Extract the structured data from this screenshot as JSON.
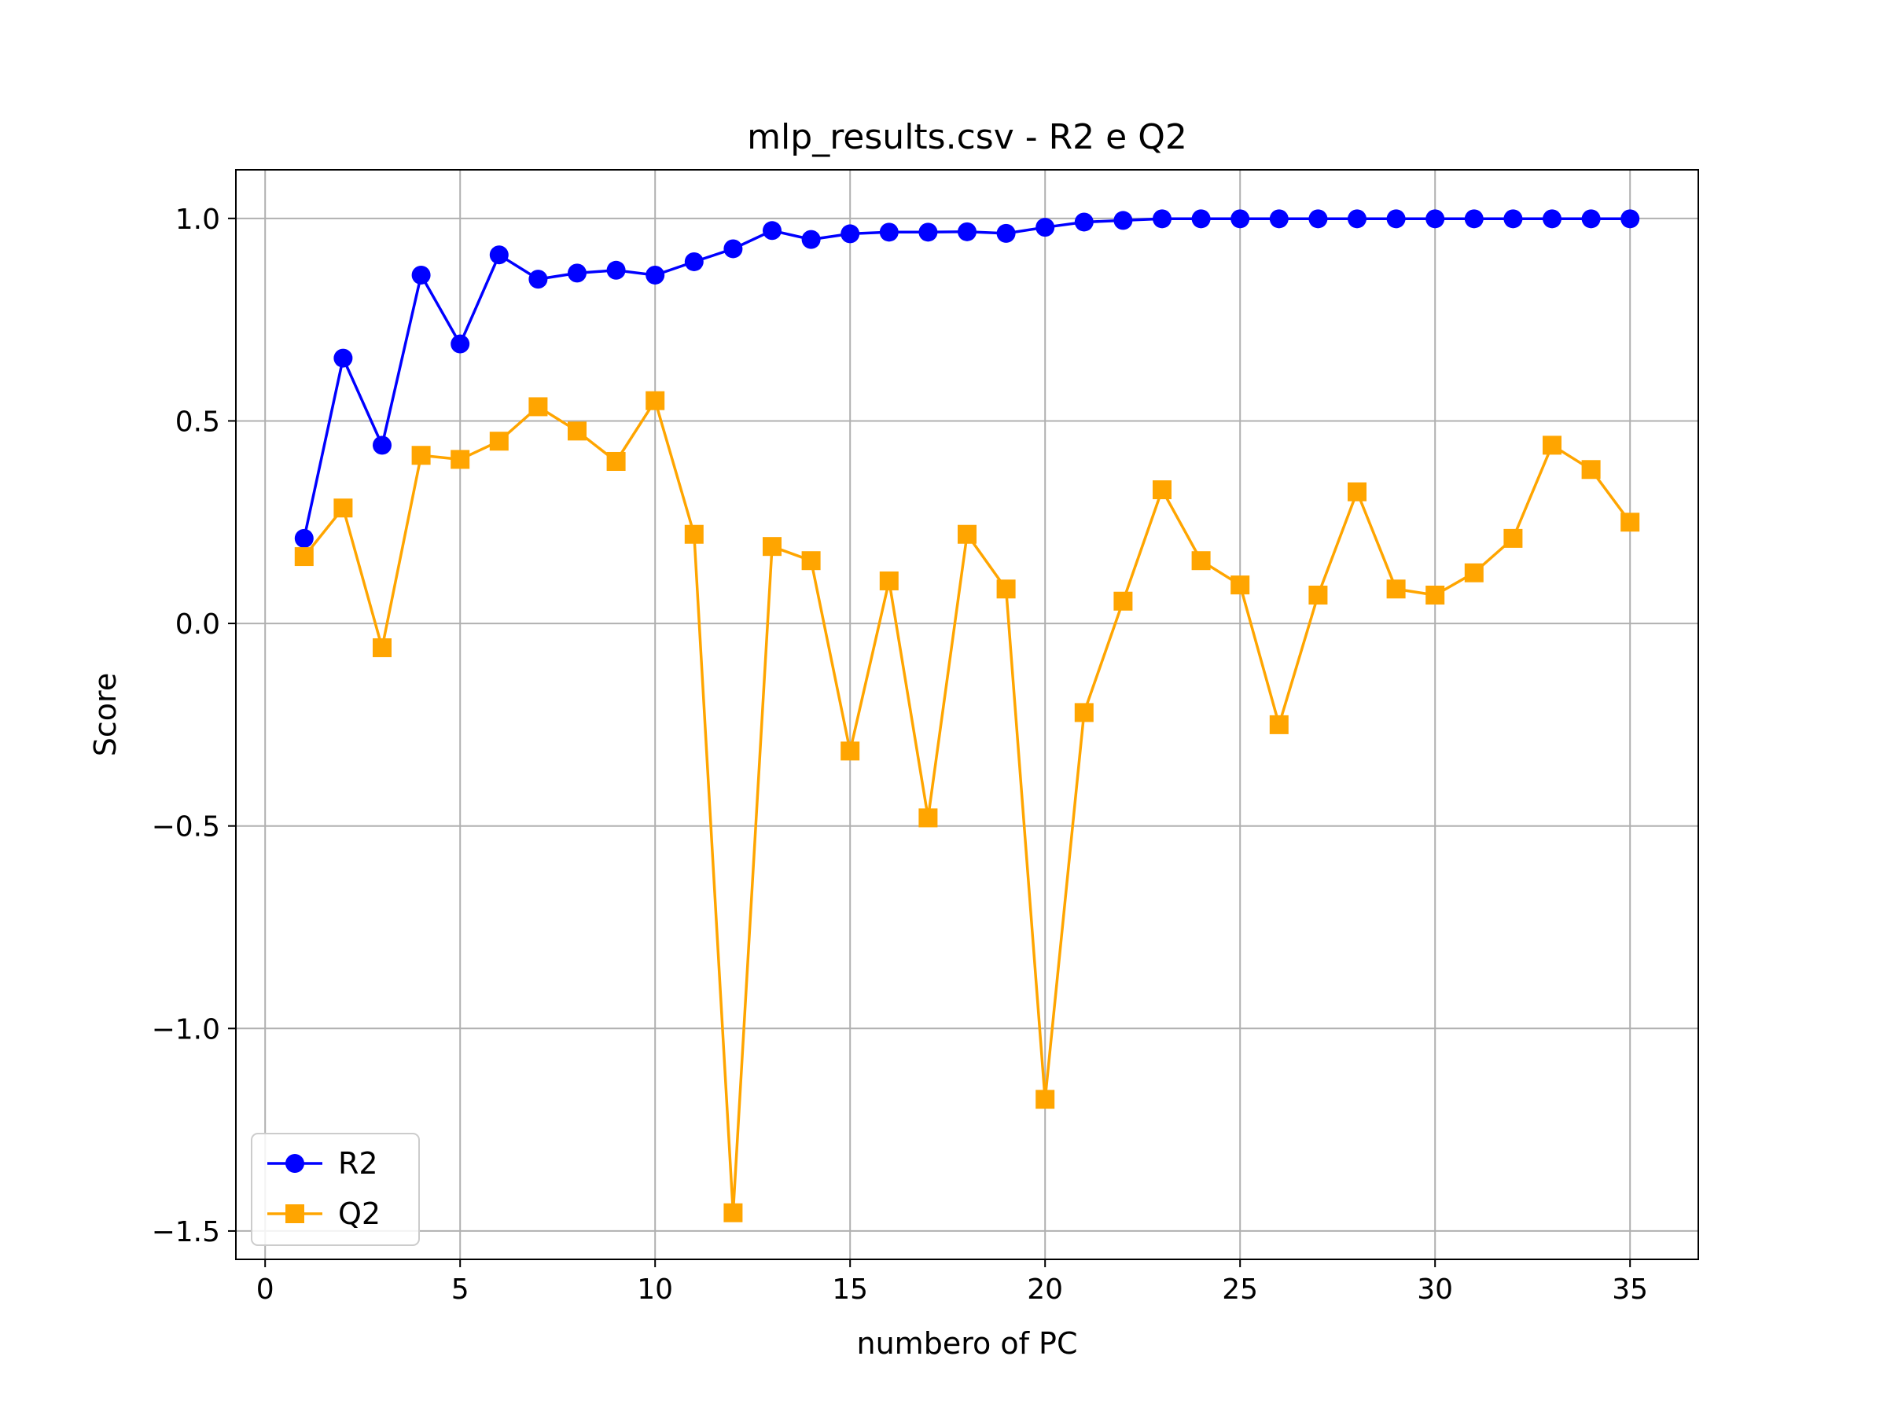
{
  "chart_data": {
    "type": "line",
    "title": "mlp_results.csv - R2 e Q2",
    "xlabel": "numbero of PC",
    "ylabel": "Score",
    "xlim": [
      -0.75,
      36.75
    ],
    "ylim": [
      -1.57,
      1.12
    ],
    "xticks": [
      0,
      5,
      10,
      15,
      20,
      25,
      30,
      35
    ],
    "yticks": [
      -1.5,
      -1.0,
      -0.5,
      0.0,
      0.5,
      1.0
    ],
    "ytick_labels": [
      "−1.5",
      "−1.0",
      "−0.5",
      "0.0",
      "0.5",
      "1.0"
    ],
    "grid": true,
    "legend_position": "lower-left",
    "x": [
      1,
      2,
      3,
      4,
      5,
      6,
      7,
      8,
      9,
      10,
      11,
      12,
      13,
      14,
      15,
      16,
      17,
      18,
      19,
      20,
      21,
      22,
      23,
      24,
      25,
      26,
      27,
      28,
      29,
      30,
      31,
      32,
      33,
      34,
      35
    ],
    "series": [
      {
        "name": "R2",
        "color": "#0000ff",
        "marker": "circle",
        "values": [
          0.21,
          0.655,
          0.44,
          0.86,
          0.69,
          0.91,
          0.85,
          0.865,
          0.872,
          0.86,
          0.893,
          0.925,
          0.97,
          0.948,
          0.962,
          0.966,
          0.966,
          0.967,
          0.963,
          0.978,
          0.991,
          0.995,
          0.999,
          0.999,
          0.999,
          0.999,
          0.999,
          0.999,
          0.999,
          0.999,
          0.999,
          0.999,
          0.999,
          0.999,
          0.999
        ]
      },
      {
        "name": "Q2",
        "color": "#ffa500",
        "marker": "square",
        "values": [
          0.165,
          0.285,
          -0.06,
          0.415,
          0.405,
          0.45,
          0.535,
          0.475,
          0.4,
          0.55,
          0.22,
          -1.455,
          0.19,
          0.155,
          -0.315,
          0.105,
          -0.48,
          0.22,
          0.085,
          -1.175,
          -0.22,
          0.055,
          0.33,
          0.155,
          0.095,
          -0.25,
          0.07,
          0.325,
          0.085,
          0.07,
          0.125,
          0.21,
          0.44,
          0.38,
          0.25
        ]
      }
    ]
  }
}
